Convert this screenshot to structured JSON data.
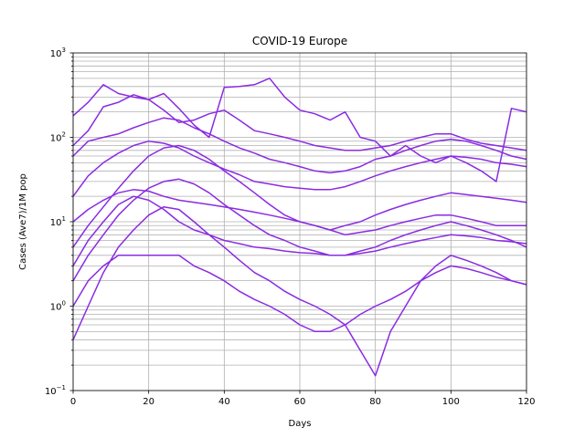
{
  "chart_data": {
    "type": "line",
    "title": "COVID-19  Europe",
    "xlabel": "Days",
    "ylabel": "Cases (Ave7)/1M pop",
    "xlim": [
      0,
      120
    ],
    "ylim": [
      0.1,
      1000
    ],
    "yscale": "log",
    "grid": true,
    "line_color": "#8a2be2",
    "x_ticks": [
      0,
      20,
      40,
      60,
      80,
      100,
      120
    ],
    "y_ticks": [
      {
        "value": 0.1,
        "base": "10",
        "exp": "−1"
      },
      {
        "value": 1,
        "base": "10",
        "exp": "0"
      },
      {
        "value": 10,
        "base": "10",
        "exp": "1"
      },
      {
        "value": 100,
        "base": "10",
        "exp": "2"
      },
      {
        "value": 1000,
        "base": "10",
        "exp": "3"
      }
    ],
    "series": [
      {
        "x": [
          0,
          4,
          8,
          12,
          16,
          20,
          24,
          28,
          32,
          36,
          40,
          44,
          48,
          52,
          56,
          60,
          64,
          68,
          72,
          76,
          80,
          84,
          88,
          92,
          96,
          100,
          104,
          108,
          112,
          116,
          120
        ],
        "values": [
          180,
          260,
          420,
          330,
          300,
          280,
          330,
          220,
          140,
          100,
          390,
          400,
          420,
          500,
          300,
          210,
          190,
          160,
          200,
          100,
          90,
          60,
          80,
          60,
          50,
          60,
          50,
          40,
          30,
          220,
          200
        ]
      },
      {
        "x": [
          0,
          4,
          8,
          12,
          16,
          20,
          24,
          28,
          32,
          36,
          40,
          44,
          48,
          52,
          56,
          60,
          64,
          68,
          72,
          76,
          80,
          84,
          88,
          92,
          96,
          100,
          104,
          108,
          112,
          116,
          120
        ],
        "values": [
          80,
          120,
          230,
          260,
          320,
          280,
          210,
          150,
          160,
          190,
          210,
          160,
          120,
          110,
          100,
          90,
          80,
          75,
          70,
          70,
          75,
          80,
          90,
          100,
          110,
          110,
          95,
          85,
          80,
          75,
          70
        ]
      },
      {
        "x": [
          0,
          4,
          8,
          12,
          16,
          20,
          24,
          28,
          32,
          36,
          40,
          44,
          48,
          52,
          56,
          60,
          64,
          68,
          72,
          76,
          80,
          84,
          88,
          92,
          96,
          100,
          104,
          108,
          112,
          116,
          120
        ],
        "values": [
          60,
          90,
          100,
          110,
          130,
          150,
          170,
          160,
          130,
          110,
          90,
          75,
          65,
          55,
          50,
          45,
          40,
          38,
          40,
          45,
          55,
          60,
          70,
          80,
          90,
          95,
          90,
          80,
          70,
          60,
          55
        ]
      },
      {
        "x": [
          0,
          4,
          8,
          12,
          16,
          20,
          24,
          28,
          32,
          36,
          40,
          44,
          48,
          52,
          56,
          60,
          64,
          68,
          72,
          76,
          80,
          84,
          88,
          92,
          96,
          100,
          104,
          108,
          112,
          116,
          120
        ],
        "values": [
          20,
          35,
          50,
          65,
          80,
          90,
          85,
          75,
          60,
          50,
          42,
          36,
          30,
          28,
          26,
          25,
          24,
          24,
          26,
          30,
          35,
          40,
          45,
          50,
          55,
          60,
          58,
          55,
          50,
          48,
          45
        ]
      },
      {
        "x": [
          0,
          4,
          8,
          12,
          16,
          20,
          24,
          28,
          32,
          36,
          40,
          44,
          48,
          52,
          56,
          60,
          64,
          68,
          72,
          76,
          80,
          84,
          88,
          92,
          96,
          100,
          104,
          108,
          112,
          116,
          120
        ],
        "values": [
          5,
          9,
          15,
          25,
          40,
          60,
          75,
          80,
          70,
          55,
          40,
          30,
          22,
          16,
          12,
          10,
          9,
          8,
          9,
          10,
          12,
          14,
          16,
          18,
          20,
          22,
          21,
          20,
          19,
          18,
          17
        ]
      },
      {
        "x": [
          0,
          4,
          8,
          12,
          16,
          20,
          24,
          28,
          32,
          36,
          40,
          44,
          48,
          52,
          56,
          60,
          64,
          68,
          72,
          76,
          80,
          84,
          88,
          92,
          96,
          100,
          104,
          108,
          112,
          116,
          120
        ],
        "values": [
          2,
          4,
          7,
          12,
          18,
          25,
          30,
          32,
          28,
          22,
          16,
          12,
          9,
          7,
          6,
          5,
          4.5,
          4,
          4,
          4.5,
          5,
          6,
          7,
          8,
          9,
          10,
          9,
          8,
          7,
          6,
          5
        ]
      },
      {
        "x": [
          0,
          4,
          8,
          12,
          16,
          20,
          24,
          28,
          32,
          36,
          40,
          44,
          48,
          52,
          56,
          60,
          64,
          68,
          72,
          76,
          80,
          84,
          88,
          92,
          96,
          100,
          104,
          108,
          112,
          116,
          120
        ],
        "values": [
          0.4,
          1,
          2.5,
          5,
          8,
          12,
          15,
          14,
          10,
          7,
          5,
          3.5,
          2.5,
          2,
          1.5,
          1.2,
          1,
          0.8,
          0.6,
          0.3,
          0.15,
          0.5,
          1,
          2,
          3,
          4,
          3.5,
          3,
          2.5,
          2,
          1.8
        ]
      },
      {
        "x": [
          0,
          4,
          8,
          12,
          16,
          20,
          24,
          28,
          32,
          36,
          40,
          44,
          48,
          52,
          56,
          60,
          64,
          68,
          72,
          76,
          80,
          84,
          88,
          92,
          96,
          100,
          104,
          108,
          112,
          116,
          120
        ],
        "values": [
          10,
          14,
          18,
          22,
          24,
          23,
          20,
          18,
          17,
          16,
          15,
          14,
          13,
          12,
          11,
          10,
          9,
          8,
          7,
          7.5,
          8,
          9,
          10,
          11,
          12,
          12,
          11,
          10,
          9,
          9,
          9
        ]
      },
      {
        "x": [
          0,
          4,
          8,
          12,
          16,
          20,
          24,
          28,
          32,
          36,
          40,
          44,
          48,
          52,
          56,
          60,
          64,
          68,
          72,
          76,
          80,
          84,
          88,
          92,
          96,
          100,
          104,
          108,
          112,
          116,
          120
        ],
        "values": [
          1,
          2,
          3,
          4,
          4,
          4,
          4,
          4,
          3,
          2.5,
          2,
          1.5,
          1.2,
          1,
          0.8,
          0.6,
          0.5,
          0.5,
          0.6,
          0.8,
          1,
          1.2,
          1.5,
          2,
          2.5,
          3,
          2.8,
          2.5,
          2.2,
          2,
          1.8
        ]
      },
      {
        "x": [
          0,
          4,
          8,
          12,
          16,
          20,
          24,
          28,
          32,
          36,
          40,
          44,
          48,
          52,
          56,
          60,
          64,
          68,
          72,
          76,
          80,
          84,
          88,
          92,
          96,
          100,
          104,
          108,
          112,
          116,
          120
        ],
        "values": [
          3,
          6,
          10,
          16,
          20,
          18,
          14,
          10,
          8,
          7,
          6,
          5.5,
          5,
          4.8,
          4.5,
          4.3,
          4.2,
          4,
          4,
          4.2,
          4.5,
          5,
          5.5,
          6,
          6.5,
          7,
          6.8,
          6.5,
          6,
          5.8,
          5.5
        ]
      }
    ]
  }
}
